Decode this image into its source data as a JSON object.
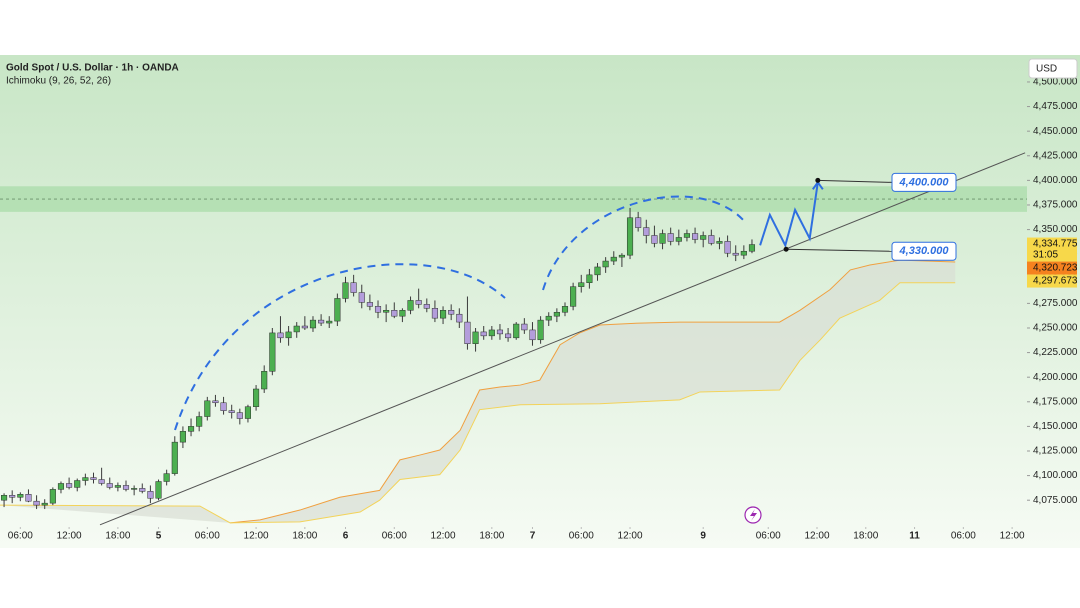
{
  "chart_data": {
    "type": "candlestick",
    "title": "Gold Spot / U.S. Dollar · 1h · OANDA",
    "subtitle": "Ichimoku (9, 26, 52, 26)",
    "currency": "USD",
    "colors": {
      "up": "#4caf50",
      "down": "#b39ddb",
      "wick": "#3a3a3a"
    },
    "x": [
      0,
      1,
      2,
      3,
      4,
      5,
      6,
      7,
      8,
      9,
      10,
      11,
      12,
      13,
      14,
      15,
      16,
      17,
      18,
      19,
      20,
      21,
      22,
      23,
      24,
      25,
      26,
      27,
      28,
      29,
      30,
      31,
      32,
      33,
      34,
      35,
      36,
      37,
      38,
      39,
      40,
      41,
      42,
      43,
      44,
      45,
      46,
      47,
      48,
      49,
      50,
      51,
      52,
      53,
      54,
      55,
      56,
      57,
      58,
      59,
      60,
      61,
      62,
      63,
      64,
      65,
      66,
      67,
      68,
      69,
      70,
      71,
      72,
      73,
      74,
      75,
      76,
      77,
      78,
      79,
      80,
      81,
      82,
      83,
      84,
      85,
      86,
      87,
      88,
      89,
      90,
      91,
      92
    ],
    "open": [
      4075,
      4080,
      4078,
      4081,
      4074,
      4070,
      4072,
      4086,
      4092,
      4088,
      4095,
      4098,
      4096,
      4092,
      4088,
      4090,
      4086,
      4087,
      4084,
      4077,
      4094,
      4102,
      4134,
      4145,
      4150,
      4160,
      4176,
      4174,
      4166,
      4164,
      4158,
      4170,
      4188,
      4206,
      4245,
      4240,
      4246,
      4252,
      4250,
      4258,
      4255,
      4257,
      4280,
      4296,
      4286,
      4276,
      4272,
      4266,
      4268,
      4262,
      4268,
      4278,
      4274,
      4270,
      4260,
      4268,
      4264,
      4256,
      4234,
      4246,
      4242,
      4248,
      4244,
      4240,
      4254,
      4248,
      4238,
      4258,
      4262,
      4266,
      4272,
      4292,
      4296,
      4304,
      4312,
      4318,
      4322,
      4324,
      4362,
      4352,
      4344,
      4336,
      4346,
      4338,
      4342,
      4346,
      4340,
      4344,
      4336,
      4338,
      4326,
      4324,
      4328
    ],
    "high": [
      4082,
      4085,
      4083,
      4086,
      4080,
      4076,
      4088,
      4094,
      4098,
      4097,
      4102,
      4103,
      4108,
      4098,
      4093,
      4095,
      4090,
      4092,
      4090,
      4096,
      4106,
      4140,
      4150,
      4158,
      4165,
      4180,
      4182,
      4180,
      4172,
      4168,
      4172,
      4192,
      4212,
      4250,
      4262,
      4252,
      4256,
      4262,
      4262,
      4264,
      4262,
      4285,
      4302,
      4304,
      4294,
      4284,
      4278,
      4274,
      4276,
      4270,
      4282,
      4290,
      4280,
      4278,
      4272,
      4274,
      4270,
      4282,
      4250,
      4252,
      4252,
      4254,
      4250,
      4256,
      4260,
      4256,
      4262,
      4266,
      4270,
      4276,
      4296,
      4304,
      4310,
      4316,
      4322,
      4328,
      4326,
      4372,
      4368,
      4360,
      4354,
      4350,
      4352,
      4350,
      4350,
      4352,
      4348,
      4350,
      4342,
      4344,
      4334,
      4334,
      4340
    ],
    "low": [
      4068,
      4072,
      4074,
      4073,
      4066,
      4066,
      4070,
      4082,
      4086,
      4084,
      4090,
      4092,
      4090,
      4086,
      4084,
      4084,
      4080,
      4082,
      4072,
      4075,
      4090,
      4100,
      4128,
      4140,
      4145,
      4156,
      4170,
      4162,
      4158,
      4152,
      4154,
      4166,
      4184,
      4202,
      4235,
      4232,
      4240,
      4248,
      4246,
      4252,
      4250,
      4252,
      4276,
      4282,
      4270,
      4268,
      4260,
      4256,
      4260,
      4256,
      4264,
      4270,
      4266,
      4256,
      4254,
      4258,
      4250,
      4228,
      4226,
      4238,
      4238,
      4238,
      4236,
      4238,
      4244,
      4232,
      4234,
      4252,
      4256,
      4262,
      4268,
      4286,
      4290,
      4298,
      4306,
      4314,
      4312,
      4320,
      4348,
      4336,
      4332,
      4330,
      4334,
      4334,
      4338,
      4336,
      4332,
      4334,
      4330,
      4322,
      4318,
      4320,
      4326
    ],
    "close": [
      4080,
      4078,
      4081,
      4074,
      4070,
      4072,
      4086,
      4092,
      4088,
      4095,
      4098,
      4096,
      4092,
      4088,
      4090,
      4086,
      4087,
      4084,
      4077,
      4094,
      4102,
      4134,
      4145,
      4150,
      4160,
      4176,
      4174,
      4166,
      4164,
      4158,
      4170,
      4188,
      4206,
      4245,
      4240,
      4246,
      4252,
      4250,
      4258,
      4255,
      4257,
      4280,
      4296,
      4286,
      4276,
      4272,
      4266,
      4268,
      4262,
      4268,
      4278,
      4274,
      4270,
      4260,
      4268,
      4264,
      4256,
      4234,
      4246,
      4242,
      4248,
      4244,
      4240,
      4254,
      4248,
      4238,
      4258,
      4262,
      4266,
      4272,
      4292,
      4296,
      4304,
      4312,
      4318,
      4322,
      4324,
      4362,
      4352,
      4344,
      4336,
      4346,
      4338,
      4342,
      4346,
      4340,
      4344,
      4336,
      4338,
      4326,
      4324,
      4328,
      4334.775
    ],
    "xlim": [
      -0.5,
      126.2
    ],
    "ylim": [
      4049.8,
      4527.4
    ],
    "xticks": [
      {
        "value": 2,
        "label": "06:00"
      },
      {
        "value": 8,
        "label": "12:00"
      },
      {
        "value": 14,
        "label": "18:00"
      },
      {
        "value": 19,
        "label": "5"
      },
      {
        "value": 25,
        "label": "06:00"
      },
      {
        "value": 31,
        "label": "12:00"
      },
      {
        "value": 37,
        "label": "18:00"
      },
      {
        "value": 42,
        "label": "6"
      },
      {
        "value": 48,
        "label": "06:00"
      },
      {
        "value": 54,
        "label": "12:00"
      },
      {
        "value": 60,
        "label": "18:00"
      },
      {
        "value": 65,
        "label": "7"
      },
      {
        "value": 71,
        "label": "06:00"
      },
      {
        "value": 77,
        "label": "12:00"
      },
      {
        "value": 86,
        "label": "9"
      },
      {
        "value": 94,
        "label": "06:00"
      },
      {
        "value": 100,
        "label": "12:00"
      },
      {
        "value": 106,
        "label": "18:00"
      },
      {
        "value": 112,
        "label": "11"
      },
      {
        "value": 118,
        "label": "06:00"
      },
      {
        "value": 124,
        "label": "12:00"
      }
    ],
    "yticks": [
      {
        "value": 4075,
        "label": "4,075.000"
      },
      {
        "value": 4100,
        "label": "4,100.000"
      },
      {
        "value": 4125,
        "label": "4,125.000"
      },
      {
        "value": 4150,
        "label": "4,150.000"
      },
      {
        "value": 4175,
        "label": "4,175.000"
      },
      {
        "value": 4200,
        "label": "4,200.000"
      },
      {
        "value": 4225,
        "label": "4,225.000"
      },
      {
        "value": 4250,
        "label": "4,250.000"
      },
      {
        "value": 4275,
        "label": "4,275.000"
      },
      {
        "value": 4300,
        "label": "4,300.000"
      },
      {
        "value": 4325,
        "label": "4,325.000"
      },
      {
        "value": 4350,
        "label": "4,350.000"
      },
      {
        "value": 4375,
        "label": "4,375.000"
      },
      {
        "value": 4400,
        "label": "4,400.000"
      },
      {
        "value": 4425,
        "label": "4,425.000"
      },
      {
        "value": 4450,
        "label": "4,450.000"
      },
      {
        "value": 4475,
        "label": "4,475.000"
      },
      {
        "value": 4500,
        "label": "4,500.000"
      }
    ],
    "cloud": {
      "span_a": {
        "color": "#f0a040",
        "x": [
          27.8,
          31.5,
          36.4,
          41.3,
          46.2,
          48.7,
          51.2,
          53.6,
          56.1,
          58.5,
          61.0,
          63.5,
          65.9,
          68.4,
          70.8,
          73.3,
          78.2,
          83.1,
          85.6,
          90.5,
          95.4,
          97.9,
          101.6,
          104.1,
          106.5,
          110.2,
          117.0
        ],
        "values": [
          4052,
          4055,
          4065,
          4078,
          4085,
          4116,
          4121,
          4126,
          4146,
          4187,
          4190,
          4192,
          4197,
          4233,
          4245,
          4253,
          4255,
          4256,
          4256,
          4256,
          4256,
          4268,
          4289,
          4309,
          4314,
          4319,
          4317
        ]
      },
      "span_b": {
        "color": "#f3d35a",
        "x": [
          -0.5,
          24.1,
          27.8,
          36.4,
          43.8,
          46.2,
          48.7,
          53.6,
          56.1,
          58.5,
          63.5,
          73.3,
          83.1,
          85.6,
          95.4,
          97.9,
          100.4,
          102.8,
          107.7,
          110.2,
          117.0
        ],
        "values": [
          4070,
          4069,
          4052,
          4053,
          4063,
          4075,
          4096,
          4101,
          4126,
          4167,
          4172,
          4173,
          4177,
          4185,
          4187,
          4217,
          4238,
          4260,
          4278,
          4296,
          4296
        ]
      },
      "fill": "#d9ded4"
    },
    "zone": {
      "from": 4368,
      "to": 4394,
      "color": "#a9dca9",
      "line": 4381
    },
    "trendline": {
      "x": [
        11.8,
        125.6
      ],
      "values": [
        4050,
        4428
      ],
      "color": "#555555"
    },
    "projection": {
      "color": "#2f6fe0",
      "x": [
        93.0,
        94.2,
        96.1,
        97.3,
        99.1,
        100.1
      ],
      "values": [
        4334,
        4365,
        4334,
        4370,
        4341,
        4398
      ]
    },
    "targets": [
      {
        "x": 100.1,
        "value": 4400,
        "label": "4,400.000"
      },
      {
        "x": 96.2,
        "value": 4330,
        "label": "4,330.000"
      }
    ],
    "price_labels": [
      {
        "value": 4334.775,
        "label": "4,334.775",
        "color": "#f7d84a"
      },
      {
        "value": 4320.723,
        "label": "4,320.723",
        "color": "#f5821f"
      },
      {
        "value": 4297.673,
        "label": "4,297.673",
        "color": "#f7d84a"
      }
    ],
    "countdown": "31:05"
  }
}
